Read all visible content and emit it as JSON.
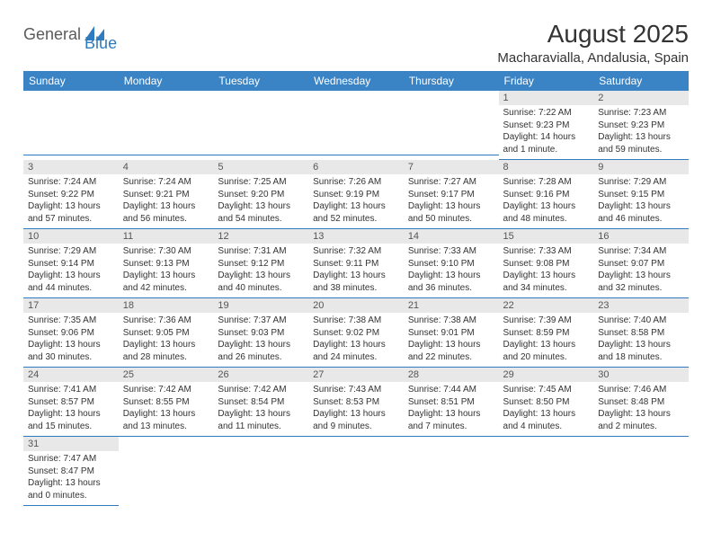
{
  "logo": {
    "text1": "General",
    "text2": "Blue",
    "shape_color": "#2f7bbf"
  },
  "title": "August 2025",
  "location": "Macharavialla, Andalusia, Spain",
  "header_bg": "#3a83c4",
  "day_header_bg": "#e8e8e8",
  "rule_color": "#2f7bbf",
  "weekdays": [
    "Sunday",
    "Monday",
    "Tuesday",
    "Wednesday",
    "Thursday",
    "Friday",
    "Saturday"
  ],
  "weeks": [
    [
      {
        "blank": true
      },
      {
        "blank": true
      },
      {
        "blank": true
      },
      {
        "blank": true
      },
      {
        "blank": true
      },
      {
        "num": "1",
        "sunrise": "Sunrise: 7:22 AM",
        "sunset": "Sunset: 9:23 PM",
        "daylight": "Daylight: 14 hours and 1 minute."
      },
      {
        "num": "2",
        "sunrise": "Sunrise: 7:23 AM",
        "sunset": "Sunset: 9:23 PM",
        "daylight": "Daylight: 13 hours and 59 minutes."
      }
    ],
    [
      {
        "num": "3",
        "sunrise": "Sunrise: 7:24 AM",
        "sunset": "Sunset: 9:22 PM",
        "daylight": "Daylight: 13 hours and 57 minutes."
      },
      {
        "num": "4",
        "sunrise": "Sunrise: 7:24 AM",
        "sunset": "Sunset: 9:21 PM",
        "daylight": "Daylight: 13 hours and 56 minutes."
      },
      {
        "num": "5",
        "sunrise": "Sunrise: 7:25 AM",
        "sunset": "Sunset: 9:20 PM",
        "daylight": "Daylight: 13 hours and 54 minutes."
      },
      {
        "num": "6",
        "sunrise": "Sunrise: 7:26 AM",
        "sunset": "Sunset: 9:19 PM",
        "daylight": "Daylight: 13 hours and 52 minutes."
      },
      {
        "num": "7",
        "sunrise": "Sunrise: 7:27 AM",
        "sunset": "Sunset: 9:17 PM",
        "daylight": "Daylight: 13 hours and 50 minutes."
      },
      {
        "num": "8",
        "sunrise": "Sunrise: 7:28 AM",
        "sunset": "Sunset: 9:16 PM",
        "daylight": "Daylight: 13 hours and 48 minutes."
      },
      {
        "num": "9",
        "sunrise": "Sunrise: 7:29 AM",
        "sunset": "Sunset: 9:15 PM",
        "daylight": "Daylight: 13 hours and 46 minutes."
      }
    ],
    [
      {
        "num": "10",
        "sunrise": "Sunrise: 7:29 AM",
        "sunset": "Sunset: 9:14 PM",
        "daylight": "Daylight: 13 hours and 44 minutes."
      },
      {
        "num": "11",
        "sunrise": "Sunrise: 7:30 AM",
        "sunset": "Sunset: 9:13 PM",
        "daylight": "Daylight: 13 hours and 42 minutes."
      },
      {
        "num": "12",
        "sunrise": "Sunrise: 7:31 AM",
        "sunset": "Sunset: 9:12 PM",
        "daylight": "Daylight: 13 hours and 40 minutes."
      },
      {
        "num": "13",
        "sunrise": "Sunrise: 7:32 AM",
        "sunset": "Sunset: 9:11 PM",
        "daylight": "Daylight: 13 hours and 38 minutes."
      },
      {
        "num": "14",
        "sunrise": "Sunrise: 7:33 AM",
        "sunset": "Sunset: 9:10 PM",
        "daylight": "Daylight: 13 hours and 36 minutes."
      },
      {
        "num": "15",
        "sunrise": "Sunrise: 7:33 AM",
        "sunset": "Sunset: 9:08 PM",
        "daylight": "Daylight: 13 hours and 34 minutes."
      },
      {
        "num": "16",
        "sunrise": "Sunrise: 7:34 AM",
        "sunset": "Sunset: 9:07 PM",
        "daylight": "Daylight: 13 hours and 32 minutes."
      }
    ],
    [
      {
        "num": "17",
        "sunrise": "Sunrise: 7:35 AM",
        "sunset": "Sunset: 9:06 PM",
        "daylight": "Daylight: 13 hours and 30 minutes."
      },
      {
        "num": "18",
        "sunrise": "Sunrise: 7:36 AM",
        "sunset": "Sunset: 9:05 PM",
        "daylight": "Daylight: 13 hours and 28 minutes."
      },
      {
        "num": "19",
        "sunrise": "Sunrise: 7:37 AM",
        "sunset": "Sunset: 9:03 PM",
        "daylight": "Daylight: 13 hours and 26 minutes."
      },
      {
        "num": "20",
        "sunrise": "Sunrise: 7:38 AM",
        "sunset": "Sunset: 9:02 PM",
        "daylight": "Daylight: 13 hours and 24 minutes."
      },
      {
        "num": "21",
        "sunrise": "Sunrise: 7:38 AM",
        "sunset": "Sunset: 9:01 PM",
        "daylight": "Daylight: 13 hours and 22 minutes."
      },
      {
        "num": "22",
        "sunrise": "Sunrise: 7:39 AM",
        "sunset": "Sunset: 8:59 PM",
        "daylight": "Daylight: 13 hours and 20 minutes."
      },
      {
        "num": "23",
        "sunrise": "Sunrise: 7:40 AM",
        "sunset": "Sunset: 8:58 PM",
        "daylight": "Daylight: 13 hours and 18 minutes."
      }
    ],
    [
      {
        "num": "24",
        "sunrise": "Sunrise: 7:41 AM",
        "sunset": "Sunset: 8:57 PM",
        "daylight": "Daylight: 13 hours and 15 minutes."
      },
      {
        "num": "25",
        "sunrise": "Sunrise: 7:42 AM",
        "sunset": "Sunset: 8:55 PM",
        "daylight": "Daylight: 13 hours and 13 minutes."
      },
      {
        "num": "26",
        "sunrise": "Sunrise: 7:42 AM",
        "sunset": "Sunset: 8:54 PM",
        "daylight": "Daylight: 13 hours and 11 minutes."
      },
      {
        "num": "27",
        "sunrise": "Sunrise: 7:43 AM",
        "sunset": "Sunset: 8:53 PM",
        "daylight": "Daylight: 13 hours and 9 minutes."
      },
      {
        "num": "28",
        "sunrise": "Sunrise: 7:44 AM",
        "sunset": "Sunset: 8:51 PM",
        "daylight": "Daylight: 13 hours and 7 minutes."
      },
      {
        "num": "29",
        "sunrise": "Sunrise: 7:45 AM",
        "sunset": "Sunset: 8:50 PM",
        "daylight": "Daylight: 13 hours and 4 minutes."
      },
      {
        "num": "30",
        "sunrise": "Sunrise: 7:46 AM",
        "sunset": "Sunset: 8:48 PM",
        "daylight": "Daylight: 13 hours and 2 minutes."
      }
    ],
    [
      {
        "num": "31",
        "sunrise": "Sunrise: 7:47 AM",
        "sunset": "Sunset: 8:47 PM",
        "daylight": "Daylight: 13 hours and 0 minutes."
      },
      {
        "blank": true
      },
      {
        "blank": true
      },
      {
        "blank": true
      },
      {
        "blank": true
      },
      {
        "blank": true
      },
      {
        "blank": true
      }
    ]
  ]
}
